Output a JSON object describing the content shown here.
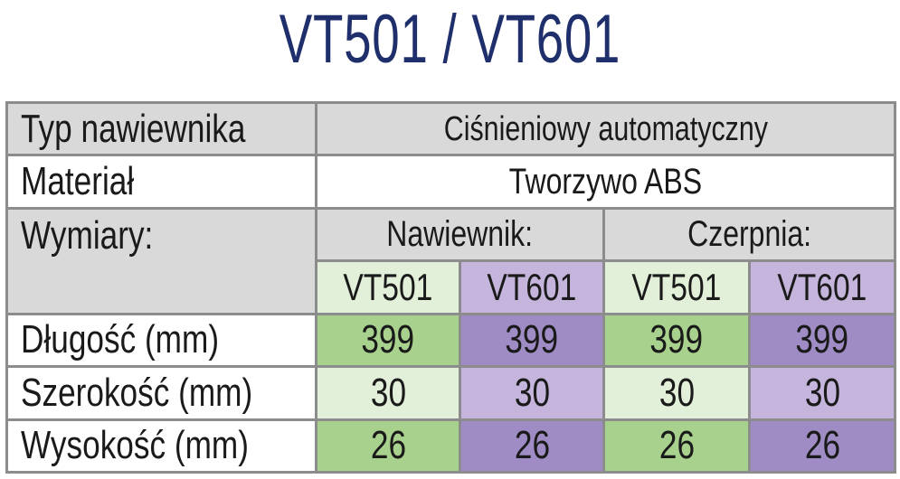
{
  "title": "VT501 / VT601",
  "rows": {
    "type": {
      "label": "Typ nawiewnika",
      "value": "Ciśnieniowy automatyczny"
    },
    "material": {
      "label": "Materiał",
      "value": "Tworzywo ABS"
    },
    "dimensions": {
      "label": "Wymiary:",
      "group1": "Nawiewnik:",
      "group2": "Czerpnia:"
    },
    "models": [
      "VT501",
      "VT601",
      "VT501",
      "VT601"
    ],
    "length": {
      "label": "Długość (mm)",
      "values": [
        "399",
        "399",
        "399",
        "399"
      ]
    },
    "width": {
      "label": "Szerokość (mm)",
      "values": [
        "30",
        "30",
        "30",
        "30"
      ]
    },
    "height": {
      "label": "Wysokość (mm)",
      "values": [
        "26",
        "26",
        "26",
        "26"
      ]
    }
  },
  "colors": {
    "title": "#1f2f6b",
    "header_grey": "#d9d9d9",
    "green_light": "#e2efd9",
    "green_dark": "#a9d18e",
    "purple_light": "#c5b5dc",
    "purple_dark": "#9f8cc4",
    "border": "#8c8c8c"
  }
}
